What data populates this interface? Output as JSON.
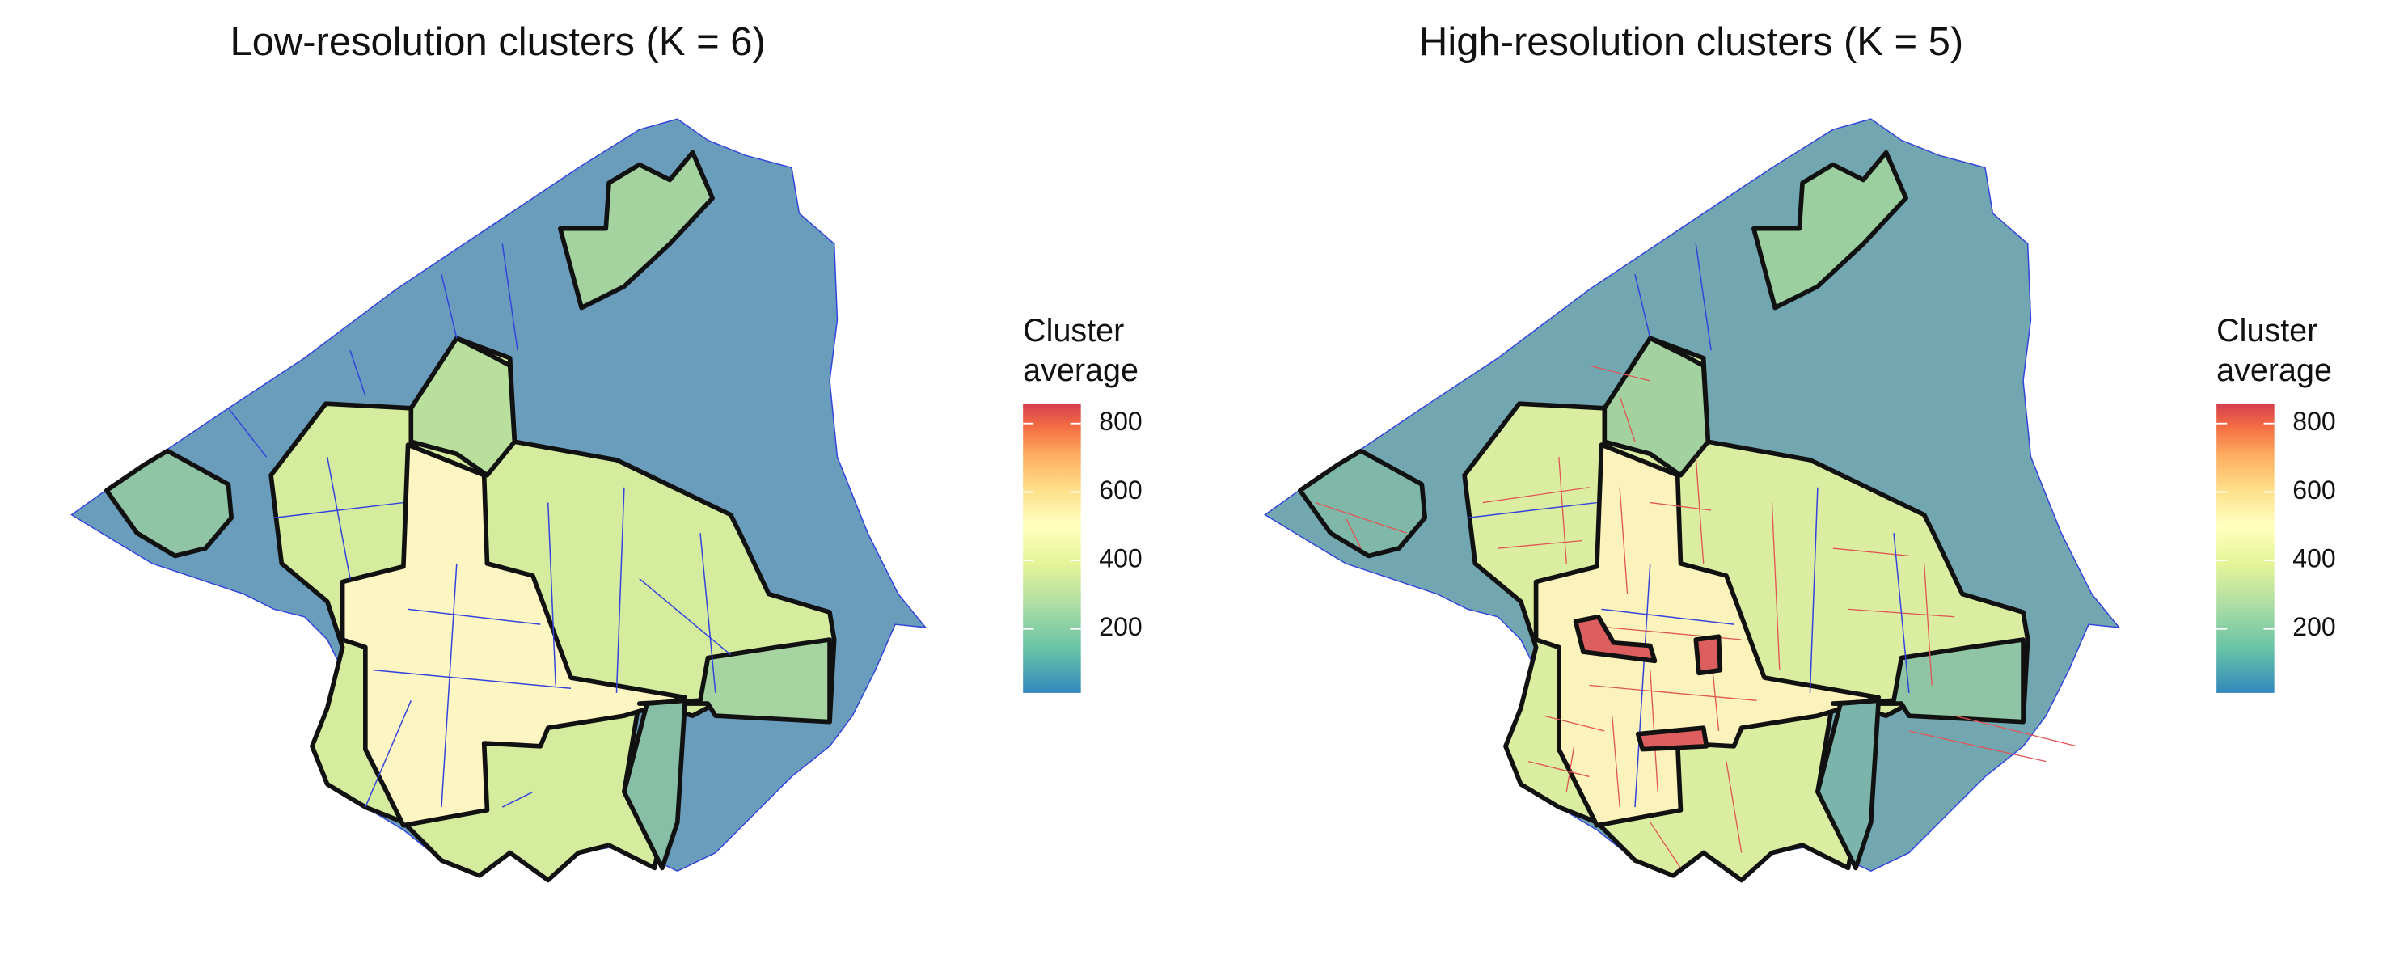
{
  "panels": [
    {
      "title": "Low-resolution clusters (K = 6)",
      "legend": {
        "title": [
          "Cluster",
          "average"
        ],
        "limits": [
          13,
          858
        ],
        "ticks": [
          200,
          400,
          600,
          800
        ]
      }
    },
    {
      "title": "High-resolution clusters (K = 5)",
      "legend": {
        "title": [
          "Cluster",
          "average"
        ],
        "limits": [
          13,
          858
        ],
        "ticks": [
          200,
          400,
          600,
          800
        ]
      }
    }
  ]
}
